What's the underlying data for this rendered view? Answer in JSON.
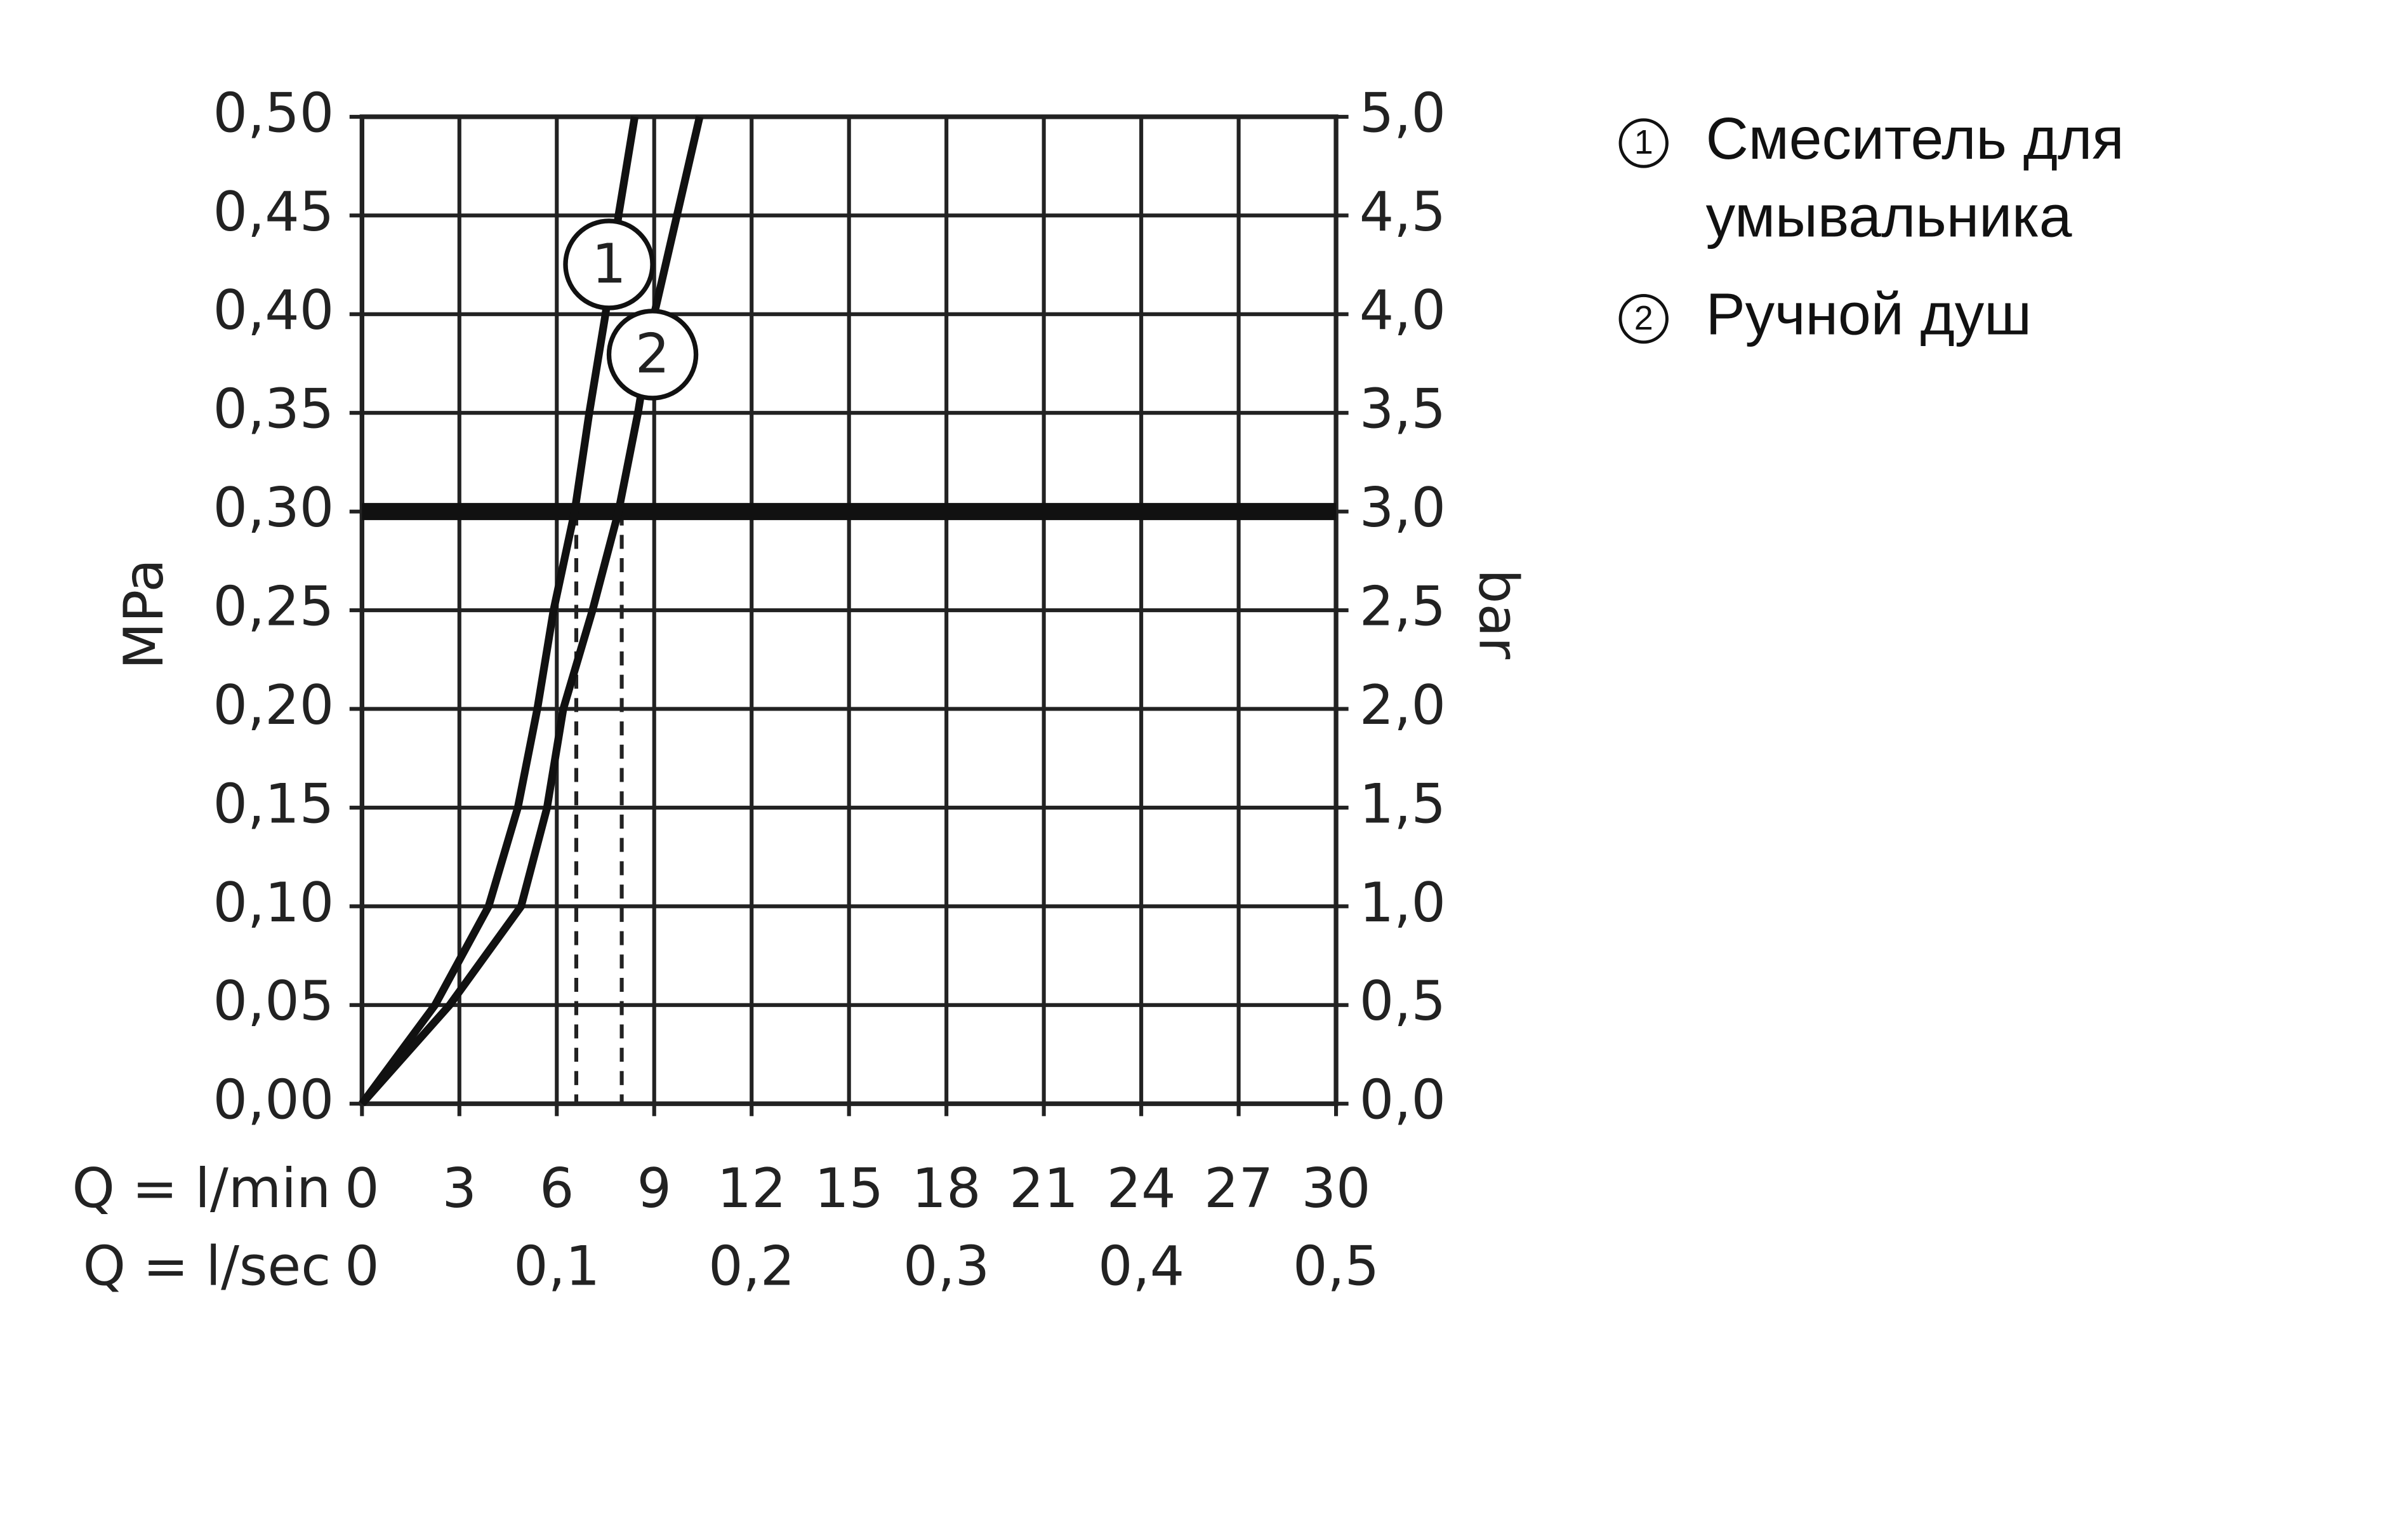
{
  "chart_data": {
    "type": "line",
    "x_label": "Q = l/min",
    "x2_label": "Q = l/sec",
    "y_label": "MPa",
    "y2_label": "bar",
    "xlim": [
      0,
      30
    ],
    "xticks": [
      0,
      3,
      6,
      9,
      12,
      15,
      18,
      21,
      24,
      27,
      30
    ],
    "x2lim": [
      0,
      0.5
    ],
    "x2ticks": [
      0,
      {
        "value": 0.1,
        "label": "0,1"
      },
      {
        "value": 0.2,
        "label": "0,2"
      },
      {
        "value": 0.3,
        "label": "0,3"
      },
      {
        "value": 0.4,
        "label": "0,4"
      },
      {
        "value": 0.5,
        "label": "0,5"
      }
    ],
    "ylim": [
      0,
      0.5
    ],
    "yticks": [
      {
        "value": 0,
        "label": "0,00"
      },
      {
        "value": 0.05,
        "label": "0,05"
      },
      {
        "value": 0.1,
        "label": "0,10"
      },
      {
        "value": 0.15,
        "label": "0,15"
      },
      {
        "value": 0.2,
        "label": "0,20"
      },
      {
        "value": 0.25,
        "label": "0,25"
      },
      {
        "value": 0.3,
        "label": "0,30"
      },
      {
        "value": 0.35,
        "label": "0,35"
      },
      {
        "value": 0.4,
        "label": "0,40"
      },
      {
        "value": 0.45,
        "label": "0,45"
      },
      {
        "value": 0.5,
        "label": "0,50"
      }
    ],
    "y2lim": [
      0,
      5
    ],
    "y2ticks": [
      {
        "value": 0,
        "label": "0,0"
      },
      {
        "value": 0.5,
        "label": "0,5"
      },
      {
        "value": 1,
        "label": "1,0"
      },
      {
        "value": 1.5,
        "label": "1,5"
      },
      {
        "value": 2,
        "label": "2,0"
      },
      {
        "value": 2.5,
        "label": "2,5"
      },
      {
        "value": 3,
        "label": "3,0"
      },
      {
        "value": 3.5,
        "label": "3,5"
      },
      {
        "value": 4,
        "label": "4,0"
      },
      {
        "value": 4.5,
        "label": "4,5"
      },
      {
        "value": 5,
        "label": "5,0"
      }
    ],
    "grid": true,
    "reference_y": 0.3,
    "reference_x": [
      6.6,
      8.0
    ],
    "series": [
      {
        "name": "Смеситель для умывальника",
        "label": "1",
        "color": "#111111",
        "x": [
          0,
          2.25,
          3.9,
          4.8,
          5.4,
          5.9,
          6.55,
          7.0,
          7.5,
          7.9,
          8.4
        ],
        "values": [
          0,
          0.05,
          0.1,
          0.15,
          0.2,
          0.25,
          0.3,
          0.35,
          0.4,
          0.45,
          0.5
        ]
      },
      {
        "name": "Ручной душ",
        "label": "2",
        "color": "#111111",
        "x": [
          0,
          2.7,
          4.9,
          5.7,
          6.2,
          7.1,
          7.9,
          8.5,
          9.0,
          9.7,
          10.4
        ],
        "values": [
          0,
          0.05,
          0.1,
          0.15,
          0.2,
          0.25,
          0.3,
          0.35,
          0.4,
          0.45,
          0.5
        ]
      }
    ]
  }
}
